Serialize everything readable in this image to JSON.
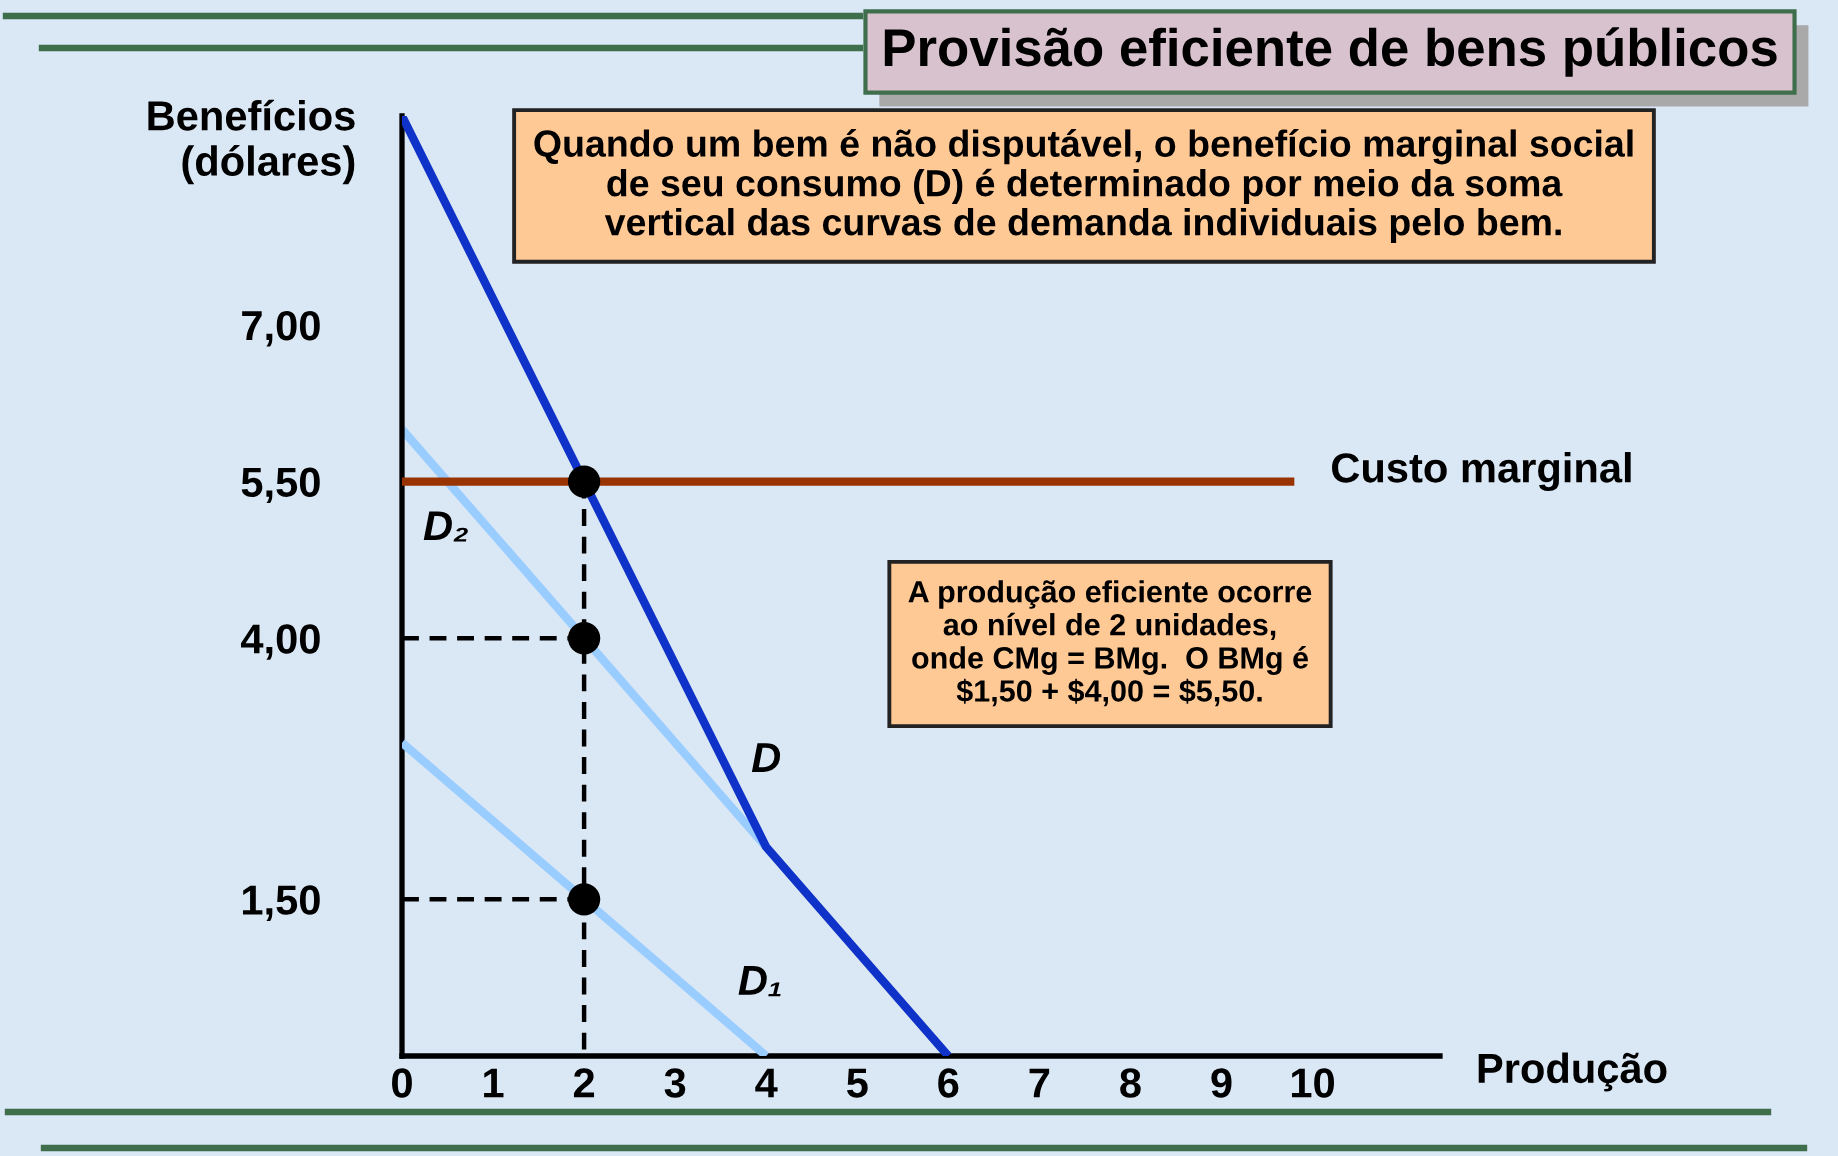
{
  "chart_data": {
    "type": "line",
    "title": "Provisão eficiente de bens públicos",
    "xlabel": "Produção",
    "ylabel": "Benefícios\n(dólares)",
    "annotations": [
      "Quando um bem é não disputável, o benefício marginal social\nde seu consumo (D) é determinado por meio da soma\nvertical das curvas de demanda individuais pelo bem.",
      "A produção eficiente ocorre\nao nível de 2 unidades,\nonde CMg = BMg.  O BMg é\n$1,50 + $4,00 = $5,50."
    ],
    "xlim": [
      0,
      11.4
    ],
    "ylim": [
      0,
      9
    ],
    "xticks": [
      0,
      1,
      2,
      3,
      4,
      5,
      6,
      7,
      8,
      9,
      10
    ],
    "yticks": [
      {
        "value": 1.5,
        "label": "1,50"
      },
      {
        "value": 4,
        "label": "4,00"
      },
      {
        "value": 5.5,
        "label": "5,50"
      },
      {
        "value": 7,
        "label": "7,00"
      }
    ],
    "series": [
      {
        "name": "D₂",
        "color": "#99ccff",
        "x": [
          0,
          4
        ],
        "values": [
          6,
          2
        ]
      },
      {
        "name": "D₁",
        "color": "#99ccff",
        "x": [
          0,
          4
        ],
        "values": [
          3,
          0
        ]
      },
      {
        "name": "D",
        "color": "#0f32c8",
        "x": [
          0,
          4,
          6
        ],
        "values": [
          9,
          2,
          0
        ]
      },
      {
        "name": "Custo marginal",
        "color": "#993300",
        "x": [
          0,
          9.8
        ],
        "values": [
          5.5,
          5.5
        ]
      },
      {
        "color": "#000000",
        "line_style": "dashed",
        "x": [
          0,
          2
        ],
        "values": [
          4,
          4
        ]
      },
      {
        "color": "#000000",
        "line_style": "dashed",
        "x": [
          0,
          2
        ],
        "values": [
          1.5,
          1.5
        ]
      },
      {
        "color": "#000000",
        "line_style": "dashed",
        "x": [
          2,
          2
        ],
        "values": [
          5.5,
          0
        ]
      },
      {
        "type": "scatter",
        "color": "#000000",
        "marker": "circle",
        "x": [
          2,
          2,
          2
        ],
        "values": [
          1.5,
          4,
          5.5
        ]
      }
    ]
  }
}
